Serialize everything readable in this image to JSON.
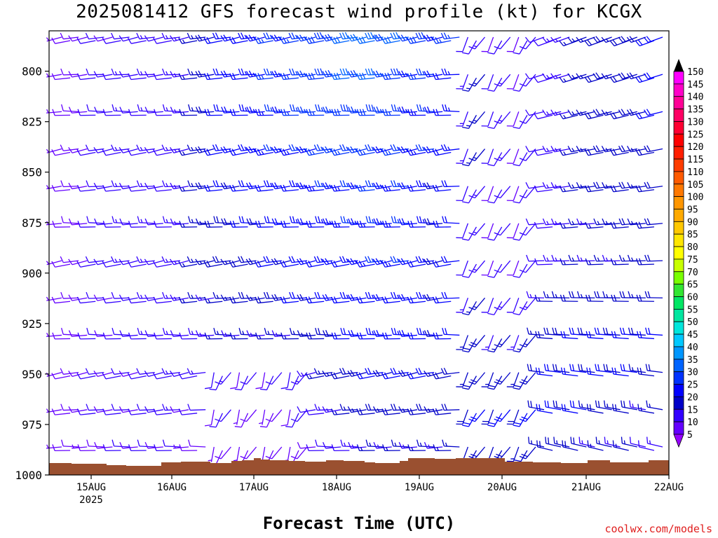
{
  "title": "2025081412 GFS forecast wind profile (kt) for KCGX",
  "x_title": "Forecast Time (UTC)",
  "credit": "coolwx.com/models",
  "colors": {
    "ground": "#9a5030",
    "frame": "#000000"
  },
  "chart_data": {
    "type": "wind_barb_profile",
    "title": "2025081412 GFS forecast wind profile (kt) for KCGX",
    "xlabel": "Forecast Time (UTC)",
    "ylabel": "",
    "x_range": [
      "2025-08-14T12",
      "2025-08-22T00"
    ],
    "y_range_hPa": [
      780,
      1000
    ],
    "y_ticks": [
      "800",
      "825",
      "850",
      "875",
      "900",
      "925",
      "950",
      "975",
      "1000"
    ],
    "x_ticks": [
      {
        "label": "15AUG",
        "sub": "2025"
      },
      {
        "label": "16AUG",
        "sub": ""
      },
      {
        "label": "17AUG",
        "sub": ""
      },
      {
        "label": "18AUG",
        "sub": ""
      },
      {
        "label": "19AUG",
        "sub": ""
      },
      {
        "label": "20AUG",
        "sub": ""
      },
      {
        "label": "21AUG",
        "sub": ""
      },
      {
        "label": "22AUG",
        "sub": ""
      }
    ],
    "colorbar": {
      "levels": [
        "150",
        "145",
        "140",
        "135",
        "130",
        "125",
        "120",
        "115",
        "110",
        "105",
        "100",
        "95",
        "90",
        "85",
        "80",
        "75",
        "70",
        "65",
        "60",
        "55",
        "50",
        "45",
        "40",
        "35",
        "30",
        "25",
        "20",
        "15",
        "10",
        "5"
      ],
      "colors": [
        "#ff00ff",
        "#ff00c8",
        "#ff0096",
        "#ff0064",
        "#ff0032",
        "#ff0000",
        "#ff1e00",
        "#ff3c00",
        "#ff5a00",
        "#ff7800",
        "#ff9600",
        "#ffaa00",
        "#ffc800",
        "#ffe600",
        "#ffff00",
        "#c8ff00",
        "#78ff00",
        "#32e632",
        "#00e664",
        "#00e6a0",
        "#00e6dc",
        "#00c8ff",
        "#0096ff",
        "#0064ff",
        "#0032ff",
        "#0000ff",
        "#0000c8",
        "#3200ff",
        "#6400ff",
        "#9600ff"
      ]
    },
    "speed_grid_kt": [
      [
        8,
        10,
        10,
        12,
        12,
        15,
        20,
        22,
        25,
        25,
        28,
        30,
        32,
        30,
        28,
        25,
        12,
        10,
        10,
        12,
        15,
        18,
        18,
        20
      ],
      [
        8,
        10,
        12,
        12,
        12,
        15,
        20,
        22,
        25,
        25,
        28,
        30,
        30,
        28,
        25,
        22,
        15,
        12,
        10,
        12,
        15,
        18,
        18,
        20
      ],
      [
        8,
        10,
        12,
        12,
        12,
        15,
        20,
        22,
        24,
        25,
        26,
        28,
        28,
        26,
        24,
        22,
        15,
        12,
        10,
        12,
        15,
        18,
        18,
        20
      ],
      [
        8,
        10,
        12,
        12,
        12,
        15,
        20,
        22,
        24,
        24,
        25,
        26,
        26,
        25,
        24,
        22,
        15,
        12,
        10,
        12,
        15,
        18,
        18,
        18
      ],
      [
        8,
        10,
        12,
        12,
        12,
        15,
        20,
        20,
        22,
        22,
        24,
        24,
        25,
        24,
        22,
        20,
        12,
        10,
        10,
        12,
        15,
        18,
        18,
        18
      ],
      [
        8,
        10,
        12,
        12,
        12,
        15,
        18,
        20,
        20,
        22,
        22,
        24,
        24,
        24,
        22,
        20,
        12,
        10,
        10,
        12,
        15,
        15,
        18,
        18
      ],
      [
        8,
        10,
        12,
        12,
        12,
        15,
        18,
        18,
        20,
        20,
        22,
        22,
        24,
        24,
        22,
        20,
        12,
        10,
        10,
        12,
        15,
        15,
        15,
        18
      ],
      [
        8,
        10,
        10,
        12,
        12,
        15,
        15,
        18,
        18,
        20,
        20,
        22,
        22,
        22,
        22,
        20,
        15,
        12,
        12,
        15,
        18,
        18,
        18,
        18
      ],
      [
        8,
        10,
        10,
        12,
        12,
        12,
        15,
        15,
        15,
        15,
        18,
        20,
        22,
        22,
        22,
        20,
        18,
        15,
        15,
        18,
        20,
        20,
        20,
        20
      ],
      [
        8,
        10,
        10,
        10,
        12,
        12,
        12,
        10,
        10,
        12,
        15,
        18,
        20,
        20,
        20,
        18,
        18,
        18,
        18,
        20,
        20,
        20,
        20,
        18
      ],
      [
        8,
        10,
        10,
        10,
        12,
        10,
        10,
        8,
        8,
        10,
        12,
        15,
        18,
        18,
        18,
        18,
        20,
        20,
        20,
        20,
        20,
        18,
        18,
        15
      ],
      [
        8,
        8,
        10,
        10,
        10,
        8,
        8,
        8,
        8,
        8,
        10,
        12,
        15,
        15,
        15,
        15,
        18,
        18,
        18,
        18,
        18,
        15,
        15,
        12
      ]
    ]
  }
}
